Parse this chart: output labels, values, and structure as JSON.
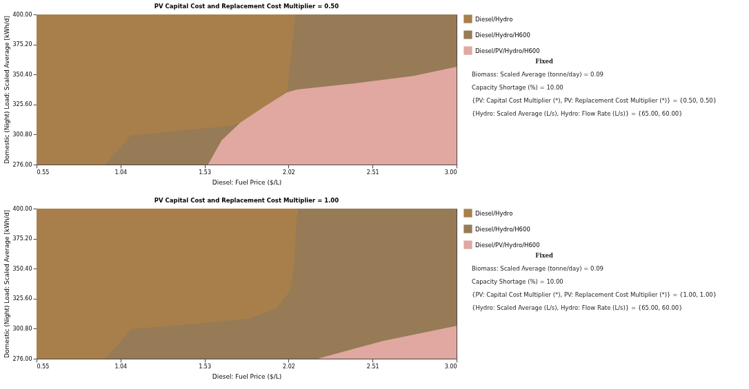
{
  "chart_data": [
    {
      "type": "area",
      "title": "PV Capital Cost and Replacement Cost Multiplier = 0.50",
      "xlabel": "Diesel: Fuel Price ($/L)",
      "ylabel": "Domestic (Night) Load: Scaled Average [kWh/d]",
      "xlim": [
        0.55,
        3.0
      ],
      "xticks": [
        {
          "value": 0.55,
          "label": "0.55"
        },
        {
          "value": 1.04,
          "label": "1.04"
        },
        {
          "value": 1.53,
          "label": "1.53"
        },
        {
          "value": 2.02,
          "label": "2.02"
        },
        {
          "value": 2.51,
          "label": "2.51"
        },
        {
          "value": 3.0,
          "label": "3.00"
        }
      ],
      "ylim": [
        276,
        400
      ],
      "yticks": [
        {
          "value": 276,
          "label": "276.00"
        },
        {
          "value": 300.8,
          "label": "300.80"
        },
        {
          "value": 325.6,
          "label": "325.60"
        },
        {
          "value": 350.4,
          "label": "350.40"
        },
        {
          "value": 375.2,
          "label": "375.20"
        },
        {
          "value": 400,
          "label": "400.00"
        }
      ],
      "grid": false,
      "legend": "right",
      "series": [
        {
          "name": "Diesel/Hydro",
          "color": "#a87f4b",
          "x": [
            0.55,
            2.06
          ],
          "values": [
            400,
            400
          ]
        },
        {
          "name": "Diesel/Hydro/H600",
          "color": "#967b56",
          "x": [
            0.95,
            1.1,
            1.68,
            1.74,
            1.87,
            2.01,
            2.03,
            2.06,
            3.0
          ],
          "values": [
            276,
            300,
            308,
            310.8,
            323,
            335.6,
            360,
            400,
            400
          ]
        },
        {
          "name": "Diesel/PV/Hydro/H600",
          "color": "#e0a8a0",
          "x": [
            1.55,
            1.63,
            1.74,
            1.87,
            2.01,
            2.07,
            2.4,
            2.75,
            3.0
          ],
          "values": [
            276,
            296,
            310.8,
            323,
            335.6,
            338,
            343,
            349.3,
            356.7
          ]
        }
      ],
      "annotations": [
        "Fixed",
        "Biomass: Scaled Average (tonne/day) = 0.09",
        "Capacity Shortage (%) = 10.00",
        "{PV: Capital Cost Multiplier (*), PV: Replacement Cost Multiplier (*)} = {0.50, 0.50}",
        "{Hydro: Scaled Average (L/s), Hydro: Flow Rate (L/s)} = {65.00, 60.00}"
      ]
    },
    {
      "type": "area",
      "title": "PV Capital Cost and Replacement Cost Multiplier = 1.00",
      "xlabel": "Diesel: Fuel Price ($/L)",
      "ylabel": "Domestic (Night) Load: Scaled Average [kWh/d]",
      "xlim": [
        0.55,
        3.0
      ],
      "xticks": [
        {
          "value": 0.55,
          "label": "0.55"
        },
        {
          "value": 1.04,
          "label": "1.04"
        },
        {
          "value": 1.53,
          "label": "1.53"
        },
        {
          "value": 2.02,
          "label": "2.02"
        },
        {
          "value": 2.51,
          "label": "2.51"
        },
        {
          "value": 3.0,
          "label": "3.00"
        }
      ],
      "ylim": [
        276,
        400
      ],
      "yticks": [
        {
          "value": 276,
          "label": "276.00"
        },
        {
          "value": 300.8,
          "label": "300.80"
        },
        {
          "value": 325.6,
          "label": "325.60"
        },
        {
          "value": 350.4,
          "label": "350.40"
        },
        {
          "value": 375.2,
          "label": "375.20"
        },
        {
          "value": 400,
          "label": "400.00"
        }
      ],
      "grid": false,
      "legend": "right",
      "series": [
        {
          "name": "Diesel/Hydro",
          "color": "#a87f4b",
          "x": [
            0.55,
            2.07
          ],
          "values": [
            400,
            400
          ]
        },
        {
          "name": "Diesel/Hydro/H600",
          "color": "#967b56",
          "x": [
            0.95,
            1.105,
            1.52,
            1.79,
            1.95,
            2.03,
            2.05,
            2.07,
            3.0
          ],
          "values": [
            276,
            300.6,
            305.5,
            309.2,
            317.7,
            332.5,
            352,
            400,
            400
          ]
        },
        {
          "name": "Diesel/PV/Hydro/H600",
          "color": "#e0a8a0",
          "x": [
            2.19,
            2.57,
            3.0
          ],
          "values": [
            276,
            290.7,
            303.1
          ]
        }
      ],
      "annotations": [
        "Fixed",
        "Biomass: Scaled Average (tonne/day) = 0.09",
        "Capacity Shortage (%) = 10.00",
        "{PV: Capital Cost Multiplier (*), PV: Replacement Cost Multiplier (*)} = {1.00, 1.00}",
        "{Hydro: Scaled Average (L/s), Hydro: Flow Rate (L/s)} = {65.00, 60.00}"
      ]
    }
  ]
}
